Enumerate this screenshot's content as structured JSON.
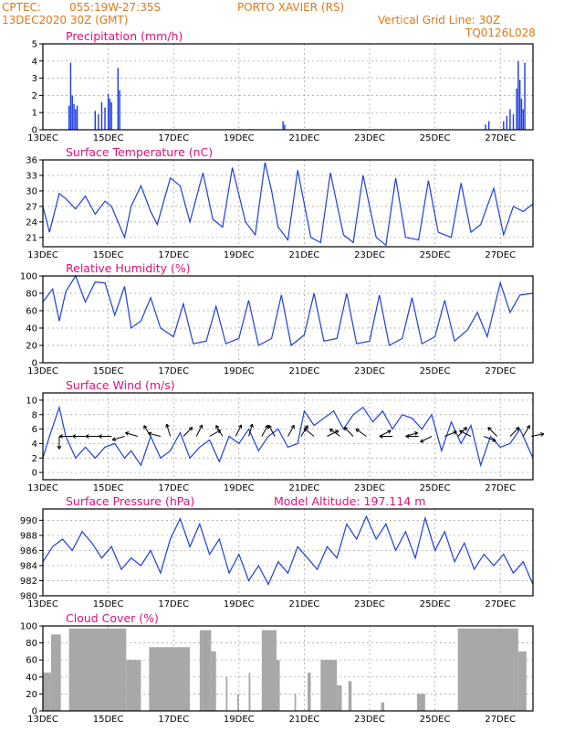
{
  "header": {
    "org": "CPTEC:",
    "coords": "055:19W-27:35S",
    "station": "PORTO XAVIER (RS)",
    "date": "13DEC2020 30Z (GMT)",
    "grid_note": "Vertical Grid Line: 30Z",
    "code": "TQ0126L028"
  },
  "colors": {
    "header": "#e07818",
    "title": "#e0107a",
    "line": "#1f3ee0",
    "cloud": "#a8a8a8"
  },
  "x_labels": [
    "13DEC",
    "15DEC",
    "17DEC",
    "19DEC",
    "21DEC",
    "23DEC",
    "25DEC",
    "27DEC"
  ],
  "chart_data": [
    {
      "id": "precip",
      "type": "bar",
      "title": "Precipitation (mm/h)",
      "ylim": [
        0,
        5
      ],
      "yticks": [
        0,
        1,
        2,
        3,
        4,
        5
      ],
      "xlim": [
        0,
        15
      ],
      "x": [
        0.8,
        0.85,
        0.9,
        0.95,
        1.0,
        1.05,
        1.6,
        1.7,
        1.8,
        1.9,
        2.0,
        2.05,
        2.1,
        2.3,
        2.35,
        7.35,
        7.4,
        13.55,
        13.65,
        14.1,
        14.2,
        14.3,
        14.4,
        14.5,
        14.55,
        14.6,
        14.65,
        14.7,
        14.75
      ],
      "values": [
        1.4,
        3.9,
        2.0,
        1.5,
        1.2,
        1.4,
        1.1,
        0.9,
        1.6,
        1.3,
        2.1,
        1.8,
        1.6,
        3.6,
        2.3,
        0.5,
        0.3,
        0.3,
        0.5,
        0.5,
        0.8,
        1.2,
        0.9,
        2.4,
        4.0,
        2.9,
        1.8,
        1.2,
        3.9
      ]
    },
    {
      "id": "temp",
      "type": "line",
      "title": "Surface Temperature (nC)",
      "ylim": [
        19.2,
        36
      ],
      "yticks": [
        21,
        24,
        27,
        30,
        33,
        36
      ],
      "xlim": [
        0,
        15
      ],
      "x": [
        0,
        0.2,
        0.5,
        0.7,
        1.0,
        1.3,
        1.6,
        1.9,
        2.1,
        2.5,
        2.7,
        3.0,
        3.3,
        3.5,
        3.9,
        4.2,
        4.5,
        4.9,
        5.2,
        5.5,
        5.8,
        6.2,
        6.5,
        6.8,
        7.0,
        7.2,
        7.5,
        7.8,
        8.2,
        8.5,
        8.8,
        9.2,
        9.5,
        9.8,
        10.2,
        10.5,
        10.8,
        11.1,
        11.5,
        11.8,
        12.1,
        12.5,
        12.8,
        13.1,
        13.4,
        13.8,
        14.1,
        14.4,
        14.7,
        15.0
      ],
      "values": [
        27,
        22,
        29.5,
        28.5,
        26.5,
        29,
        25.5,
        28,
        27,
        21,
        27,
        31,
        26,
        23.5,
        32.5,
        31,
        24,
        33.5,
        24.5,
        23,
        34.5,
        24,
        21.5,
        35.5,
        30,
        23,
        20.5,
        34,
        21,
        20,
        33.5,
        21.5,
        20,
        33,
        21,
        19.5,
        32.5,
        21,
        20.5,
        32,
        22,
        21,
        31.5,
        22,
        23.5,
        30.5,
        21.5,
        27,
        26,
        27.5
      ]
    },
    {
      "id": "rh",
      "type": "line",
      "title": "Relative Humidity (%)",
      "ylim": [
        0,
        100
      ],
      "yticks": [
        0,
        20,
        40,
        60,
        80,
        100
      ],
      "xlim": [
        0,
        15
      ],
      "x": [
        0,
        0.3,
        0.5,
        0.7,
        1.0,
        1.3,
        1.6,
        1.9,
        2.2,
        2.5,
        2.7,
        3.0,
        3.3,
        3.6,
        4.0,
        4.3,
        4.6,
        5.0,
        5.3,
        5.6,
        6.0,
        6.3,
        6.6,
        7.0,
        7.3,
        7.6,
        8.0,
        8.3,
        8.6,
        9.0,
        9.3,
        9.6,
        10.0,
        10.3,
        10.6,
        11.0,
        11.3,
        11.6,
        12.0,
        12.3,
        12.6,
        13.0,
        13.3,
        13.6,
        14.0,
        14.3,
        14.6,
        15.0
      ],
      "values": [
        70,
        85,
        48,
        82,
        100,
        70,
        93,
        92,
        55,
        88,
        40,
        48,
        75,
        40,
        30,
        68,
        22,
        25,
        65,
        22,
        28,
        72,
        20,
        28,
        78,
        20,
        32,
        80,
        25,
        28,
        80,
        22,
        25,
        78,
        20,
        28,
        75,
        22,
        30,
        72,
        25,
        38,
        58,
        30,
        92,
        58,
        78,
        80
      ]
    },
    {
      "id": "wind",
      "type": "line",
      "title": "Surface Wind (m/s)",
      "ylim": [
        -1,
        11
      ],
      "yticks": [
        0,
        2,
        4,
        6,
        8,
        10
      ],
      "xlim": [
        0,
        15
      ],
      "x": [
        0,
        0.2,
        0.5,
        0.7,
        1.0,
        1.3,
        1.6,
        1.9,
        2.2,
        2.5,
        2.7,
        3.0,
        3.3,
        3.6,
        3.9,
        4.2,
        4.5,
        4.8,
        5.1,
        5.4,
        5.7,
        6.0,
        6.3,
        6.6,
        6.9,
        7.2,
        7.5,
        7.8,
        8.0,
        8.3,
        8.6,
        8.9,
        9.2,
        9.5,
        9.8,
        10.1,
        10.4,
        10.7,
        11.0,
        11.3,
        11.6,
        11.9,
        12.2,
        12.5,
        12.8,
        13.1,
        13.4,
        13.7,
        14.0,
        14.3,
        14.6,
        15.0
      ],
      "values": [
        2,
        5,
        9,
        5,
        2,
        3.5,
        2,
        3.5,
        4,
        2,
        3,
        1,
        5,
        2,
        3,
        5.5,
        2,
        3.5,
        4.5,
        1.5,
        5,
        4,
        6,
        3,
        5,
        6,
        3.5,
        4,
        8.5,
        6.5,
        7.5,
        8.5,
        6,
        8,
        9,
        7,
        8.5,
        6,
        8,
        7.5,
        6,
        8,
        3,
        7,
        4,
        6.5,
        1,
        5,
        3.5,
        4,
        6,
        2
      ]
    },
    {
      "id": "pressure",
      "type": "line",
      "title": "Surface Pressure (hPa)",
      "annotation": "Model Altitude: 197.114 m",
      "ylim": [
        980,
        991.5
      ],
      "yticks": [
        980,
        982,
        984,
        986,
        988,
        990
      ],
      "xlim": [
        0,
        15
      ],
      "x": [
        0,
        0.3,
        0.6,
        0.9,
        1.2,
        1.5,
        1.8,
        2.1,
        2.4,
        2.7,
        3.0,
        3.3,
        3.6,
        3.9,
        4.2,
        4.5,
        4.8,
        5.1,
        5.4,
        5.7,
        6.0,
        6.3,
        6.6,
        6.9,
        7.2,
        7.5,
        7.8,
        8.1,
        8.4,
        8.7,
        9.0,
        9.3,
        9.6,
        9.9,
        10.2,
        10.5,
        10.8,
        11.1,
        11.4,
        11.7,
        12.0,
        12.3,
        12.6,
        12.9,
        13.2,
        13.5,
        13.8,
        14.1,
        14.4,
        14.7,
        15.0
      ],
      "values": [
        984.5,
        986.5,
        987.5,
        986,
        988.5,
        987,
        985,
        986.5,
        983.5,
        985,
        984,
        986,
        983,
        987.5,
        990.2,
        986.5,
        989.5,
        985.5,
        987.5,
        983,
        985.5,
        982,
        984,
        981.5,
        984.5,
        983,
        986.5,
        985,
        983.5,
        986.5,
        985,
        989.5,
        987.5,
        990.5,
        987.5,
        989.5,
        986,
        988.5,
        985,
        990.3,
        986,
        988.5,
        984.5,
        987,
        983.5,
        985.5,
        984,
        985.5,
        983,
        984.5,
        981.5
      ]
    },
    {
      "id": "cloud",
      "type": "bar",
      "title": "Cloud Cover (%)",
      "ylim": [
        0,
        100
      ],
      "yticks": [
        0,
        20,
        40,
        60,
        80,
        100
      ],
      "xlim": [
        0,
        15
      ],
      "segments": [
        {
          "x0": 0.0,
          "x1": 0.25,
          "value": 45
        },
        {
          "x0": 0.25,
          "x1": 0.55,
          "value": 90
        },
        {
          "x0": 0.8,
          "x1": 2.55,
          "value": 97
        },
        {
          "x0": 2.55,
          "x1": 3.0,
          "value": 60
        },
        {
          "x0": 3.25,
          "x1": 4.5,
          "value": 75
        },
        {
          "x0": 4.8,
          "x1": 5.15,
          "value": 95
        },
        {
          "x0": 5.15,
          "x1": 5.3,
          "value": 70
        },
        {
          "x0": 5.6,
          "x1": 5.65,
          "value": 40
        },
        {
          "x0": 5.95,
          "x1": 6.0,
          "value": 20
        },
        {
          "x0": 6.3,
          "x1": 6.35,
          "value": 45
        },
        {
          "x0": 6.3,
          "x1": 6.35,
          "value": 30
        },
        {
          "x0": 6.7,
          "x1": 7.15,
          "value": 95
        },
        {
          "x0": 7.15,
          "x1": 7.25,
          "value": 60
        },
        {
          "x0": 7.7,
          "x1": 7.75,
          "value": 20
        },
        {
          "x0": 8.1,
          "x1": 8.2,
          "value": 45
        },
        {
          "x0": 8.5,
          "x1": 9.0,
          "value": 60
        },
        {
          "x0": 9.0,
          "x1": 9.15,
          "value": 30
        },
        {
          "x0": 9.35,
          "x1": 9.45,
          "value": 35
        },
        {
          "x0": 10.35,
          "x1": 10.45,
          "value": 10
        },
        {
          "x0": 11.45,
          "x1": 11.7,
          "value": 20
        },
        {
          "x0": 12.7,
          "x1": 14.55,
          "value": 97
        },
        {
          "x0": 14.55,
          "x1": 14.8,
          "value": 70
        }
      ]
    }
  ],
  "wind_arrows": [
    {
      "x": 0.5,
      "u": 0,
      "v": -5
    },
    {
      "x": 0.9,
      "u": -1,
      "v": 0
    },
    {
      "x": 1.3,
      "u": -1,
      "v": 0
    },
    {
      "x": 1.7,
      "u": -1,
      "v": 0
    },
    {
      "x": 2.1,
      "u": -1,
      "v": 0
    },
    {
      "x": 2.5,
      "u": -1,
      "v": -0.3
    },
    {
      "x": 2.9,
      "u": -1,
      "v": 0.3
    },
    {
      "x": 3.3,
      "u": -0.5,
      "v": 0.8
    },
    {
      "x": 3.6,
      "u": -0.8,
      "v": 0.2
    },
    {
      "x": 3.9,
      "u": -0.3,
      "v": 1
    },
    {
      "x": 4.3,
      "u": 0.5,
      "v": 0.5
    },
    {
      "x": 4.7,
      "u": 0.5,
      "v": 1
    },
    {
      "x": 5.1,
      "u": 0.9,
      "v": 0.5
    },
    {
      "x": 5.5,
      "u": -0.6,
      "v": 1
    },
    {
      "x": 5.9,
      "u": 0.5,
      "v": 1
    },
    {
      "x": 6.3,
      "u": 0.3,
      "v": 1
    },
    {
      "x": 6.7,
      "u": 0.5,
      "v": 0.9
    },
    {
      "x": 7.1,
      "u": -0.5,
      "v": 0.9
    },
    {
      "x": 7.5,
      "u": 0.5,
      "v": 0.9
    },
    {
      "x": 7.9,
      "u": 0.5,
      "v": 0.8
    },
    {
      "x": 8.3,
      "u": -1,
      "v": 0.8
    },
    {
      "x": 8.7,
      "u": 1,
      "v": 0.5
    },
    {
      "x": 9.1,
      "u": -1,
      "v": 0.7
    },
    {
      "x": 9.5,
      "u": -1,
      "v": 1
    },
    {
      "x": 9.9,
      "u": -1,
      "v": 0.7
    },
    {
      "x": 10.3,
      "u": 1,
      "v": 0.5
    },
    {
      "x": 10.7,
      "u": -1,
      "v": 0
    },
    {
      "x": 11.1,
      "u": 1,
      "v": 0.3
    },
    {
      "x": 11.5,
      "u": -1,
      "v": 0
    },
    {
      "x": 11.9,
      "u": -1,
      "v": -0.5
    },
    {
      "x": 12.3,
      "u": 1,
      "v": 0.4
    },
    {
      "x": 12.7,
      "u": 1,
      "v": 1
    },
    {
      "x": 13.1,
      "u": -1,
      "v": 0.5
    },
    {
      "x": 13.5,
      "u": 0.5,
      "v": -0.2
    },
    {
      "x": 13.9,
      "u": -0.5,
      "v": 0.5
    },
    {
      "x": 14.3,
      "u": 0.5,
      "v": 0.5
    },
    {
      "x": 14.7,
      "u": 0.6,
      "v": 1
    },
    {
      "x": 14.95,
      "u": 1,
      "v": 0.2
    }
  ]
}
